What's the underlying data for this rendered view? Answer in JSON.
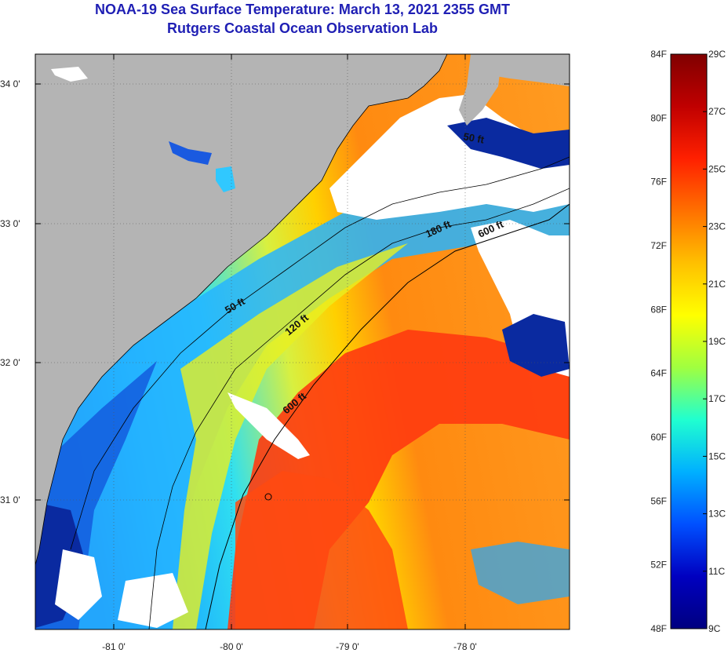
{
  "title_line1": "NOAA-19 Sea Surface Temperature:  March 13, 2021 2355 GMT",
  "title_line2": "Rutgers Coastal Ocean Observation Lab",
  "lat_labels": [
    "34 0'",
    "33 0'",
    "32 0'",
    "31 0'"
  ],
  "lon_labels": [
    "-81 0'",
    "-80 0'",
    "-79 0'",
    "-78 0'"
  ],
  "contour_labels": [
    "50 ft",
    "50 ft",
    "120 ft",
    "180 ft",
    "600 ft",
    "600 ft"
  ],
  "colorbar": {
    "fahrenheit": [
      "84F",
      "80F",
      "76F",
      "72F",
      "68F",
      "64F",
      "60F",
      "56F",
      "52F",
      "48F"
    ],
    "celsius": [
      "29C",
      "27C",
      "25C",
      "23C",
      "21C",
      "19C",
      "17C",
      "15C",
      "13C",
      "11C",
      "9C"
    ],
    "gradient": [
      "#800000",
      "#c00000",
      "#ff2000",
      "#ff7000",
      "#ffc000",
      "#ffff00",
      "#a0ff40",
      "#20ffd0",
      "#00b0ff",
      "#0050ff",
      "#0000c0",
      "#000080"
    ]
  },
  "colors": {
    "land": "#b4b4b4",
    "cloud": "#ffffff",
    "warm": "#ff5010",
    "cool": "#30c0ff"
  }
}
